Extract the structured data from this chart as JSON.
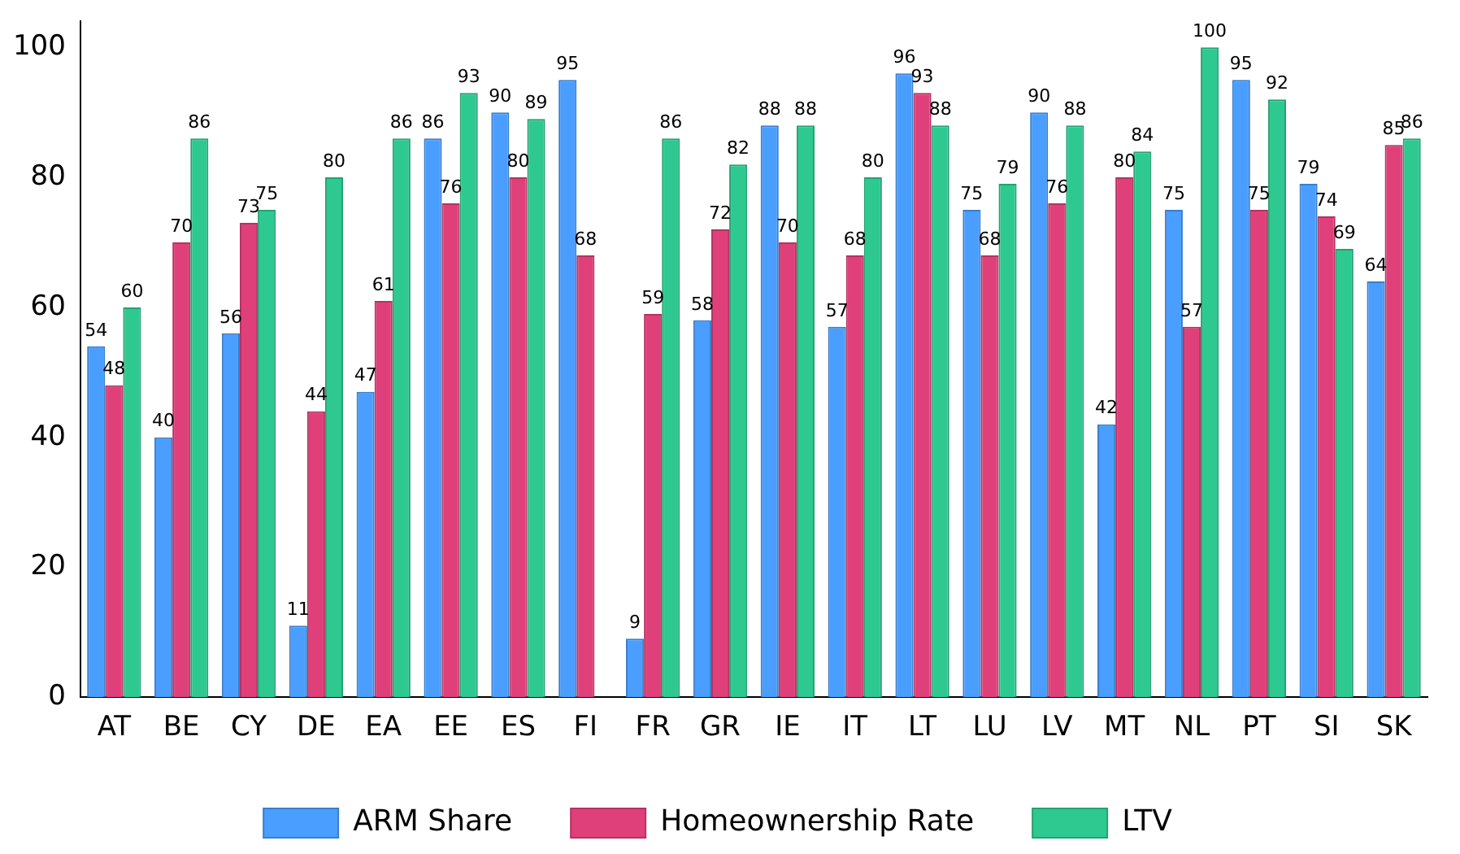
{
  "chart_data": {
    "type": "bar",
    "categories": [
      "AT",
      "BE",
      "CY",
      "DE",
      "EA",
      "EE",
      "ES",
      "FI",
      "FR",
      "GR",
      "IE",
      "IT",
      "LT",
      "LU",
      "LV",
      "MT",
      "NL",
      "PT",
      "SI",
      "SK"
    ],
    "series": [
      {
        "name": "ARM Share",
        "color": "#4a9eff",
        "values": [
          54,
          40,
          56,
          11,
          47,
          86,
          90,
          95,
          9,
          58,
          88,
          57,
          96,
          75,
          90,
          42,
          75,
          95,
          79,
          64
        ]
      },
      {
        "name": "Homeownership Rate",
        "color": "#e0407a",
        "values": [
          48,
          70,
          73,
          44,
          61,
          76,
          80,
          68,
          59,
          72,
          70,
          68,
          93,
          68,
          76,
          80,
          57,
          75,
          74,
          85
        ]
      },
      {
        "name": "LTV",
        "color": "#2ec990",
        "values": [
          60,
          86,
          75,
          80,
          86,
          93,
          89,
          null,
          86,
          82,
          88,
          80,
          88,
          79,
          88,
          84,
          100,
          92,
          69,
          86
        ]
      }
    ],
    "ylim": [
      0,
      104
    ],
    "yticks": [
      0,
      20,
      40,
      60,
      80,
      100
    ],
    "grid": false,
    "legend": "bottom",
    "data_labels": true
  }
}
